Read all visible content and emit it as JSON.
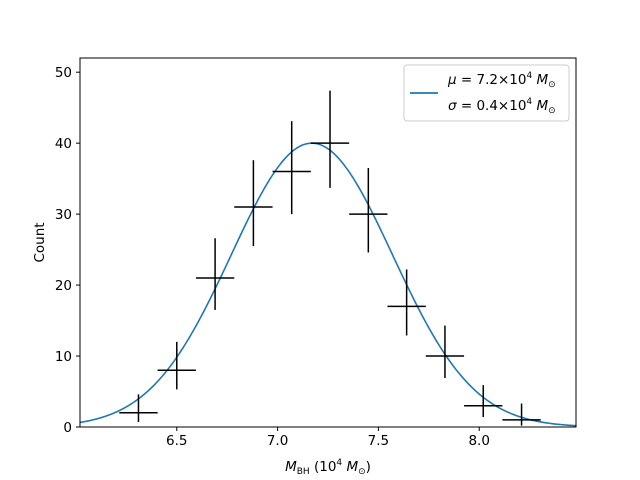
{
  "chart_data": {
    "type": "line",
    "title": "",
    "xlabel": {
      "symbol": "M",
      "subscript": "BH",
      "unit_prefix": " (10",
      "unit_exp": "4",
      "unit_symbol": "M",
      "unit_sub": "⊙",
      "unit_suffix": ")"
    },
    "ylabel": "Count",
    "xlim": [
      6.02,
      8.48
    ],
    "ylim": [
      0,
      52
    ],
    "xticks": [
      6.5,
      7.0,
      7.5,
      8.0
    ],
    "xtick_labels": [
      "6.5",
      "7.0",
      "7.5",
      "8.0"
    ],
    "yticks": [
      0,
      10,
      20,
      30,
      40,
      50
    ],
    "ytick_labels": [
      "0",
      "10",
      "20",
      "30",
      "40",
      "50"
    ],
    "grid": false,
    "legend_position": "top-right",
    "series": [
      {
        "name": "gaussian-fit",
        "kind": "line",
        "color": "#1f77b4",
        "mu": 7.17,
        "sigma": 0.4,
        "amplitude": 40,
        "legend": {
          "mu_line": {
            "greek": "μ",
            "eq": " = 7.2×10",
            "exp": "4",
            "m": " M",
            "sub": "⊙"
          },
          "sigma_line": {
            "greek": "σ",
            "eq": " = 0.4×10",
            "exp": "4",
            "m": " M",
            "sub": "⊙"
          }
        }
      },
      {
        "name": "histogram-counts",
        "kind": "errorbar",
        "color": "#000000",
        "points": [
          {
            "x": 6.31,
            "y": 2,
            "xerr": 0.095,
            "yerr_low": 1.3,
            "yerr_high": 2.6
          },
          {
            "x": 6.5,
            "y": 8,
            "xerr": 0.095,
            "yerr_low": 2.7,
            "yerr_high": 4.0
          },
          {
            "x": 6.69,
            "y": 21,
            "xerr": 0.095,
            "yerr_low": 4.5,
            "yerr_high": 5.6
          },
          {
            "x": 6.88,
            "y": 31,
            "xerr": 0.095,
            "yerr_low": 5.5,
            "yerr_high": 6.6
          },
          {
            "x": 7.07,
            "y": 36,
            "xerr": 0.095,
            "yerr_low": 6.0,
            "yerr_high": 7.1
          },
          {
            "x": 7.26,
            "y": 40,
            "xerr": 0.095,
            "yerr_low": 6.3,
            "yerr_high": 7.4
          },
          {
            "x": 7.45,
            "y": 30,
            "xerr": 0.095,
            "yerr_low": 5.4,
            "yerr_high": 6.5
          },
          {
            "x": 7.64,
            "y": 17,
            "xerr": 0.095,
            "yerr_low": 4.1,
            "yerr_high": 5.2
          },
          {
            "x": 7.83,
            "y": 10,
            "xerr": 0.095,
            "yerr_low": 3.1,
            "yerr_high": 4.3
          },
          {
            "x": 8.02,
            "y": 3,
            "xerr": 0.095,
            "yerr_low": 1.6,
            "yerr_high": 2.9
          },
          {
            "x": 8.21,
            "y": 1,
            "xerr": 0.095,
            "yerr_low": 0.8,
            "yerr_high": 2.3
          }
        ]
      }
    ]
  }
}
